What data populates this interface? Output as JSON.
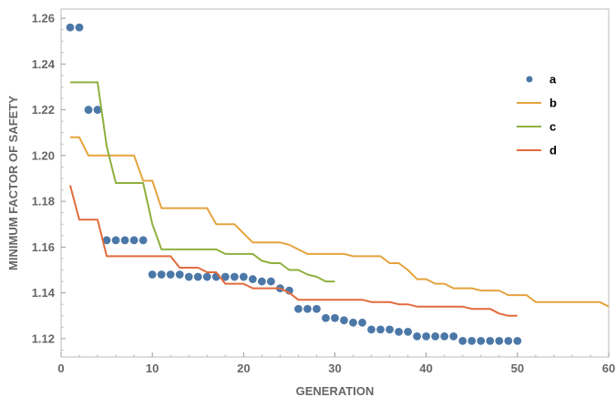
{
  "chart_data": {
    "type": "line",
    "xlabel": "GENERATION",
    "ylabel": "MINIMUM FACTOR OF SAFETY",
    "xlim": [
      0,
      60
    ],
    "ylim": [
      1.112,
      1.264
    ],
    "xticks": [
      0,
      10,
      20,
      30,
      40,
      50,
      60
    ],
    "yticks": [
      1.12,
      1.14,
      1.16,
      1.18,
      1.2,
      1.22,
      1.24,
      1.26
    ],
    "xtick_labels": [
      "0",
      "10",
      "20",
      "30",
      "40",
      "50",
      "60"
    ],
    "ytick_labels": [
      "1.12",
      "1.14",
      "1.16",
      "1.18",
      "1.20",
      "1.22",
      "1.24",
      "1.26"
    ],
    "grid": false,
    "legend_position": "top-right",
    "series": [
      {
        "name": "a",
        "style": "markers",
        "color": "#4c78a8",
        "x": [
          1,
          2,
          3,
          4,
          5,
          6,
          7,
          8,
          9,
          10,
          11,
          12,
          13,
          14,
          15,
          16,
          17,
          18,
          19,
          20,
          21,
          22,
          23,
          24,
          25,
          26,
          27,
          28,
          29,
          30,
          31,
          32,
          33,
          34,
          35,
          36,
          37,
          38,
          39,
          40,
          41,
          42,
          43,
          44,
          45,
          46,
          47,
          48,
          49,
          50
        ],
        "y": [
          1.256,
          1.256,
          1.22,
          1.22,
          1.163,
          1.163,
          1.163,
          1.163,
          1.163,
          1.148,
          1.148,
          1.148,
          1.148,
          1.147,
          1.147,
          1.147,
          1.147,
          1.147,
          1.147,
          1.147,
          1.146,
          1.145,
          1.145,
          1.142,
          1.141,
          1.133,
          1.133,
          1.133,
          1.129,
          1.129,
          1.128,
          1.127,
          1.127,
          1.124,
          1.124,
          1.124,
          1.123,
          1.123,
          1.121,
          1.121,
          1.121,
          1.121,
          1.121,
          1.119,
          1.119,
          1.119,
          1.119,
          1.119,
          1.119,
          1.119
        ]
      },
      {
        "name": "b",
        "style": "line",
        "color": "#e5a33d",
        "x": [
          1,
          2,
          3,
          4,
          5,
          6,
          7,
          8,
          9,
          10,
          11,
          12,
          13,
          14,
          15,
          16,
          17,
          18,
          19,
          20,
          21,
          22,
          23,
          24,
          25,
          26,
          27,
          28,
          29,
          30,
          31,
          32,
          33,
          34,
          35,
          36,
          37,
          38,
          39,
          40,
          41,
          42,
          43,
          44,
          45,
          46,
          47,
          48,
          49,
          50,
          51,
          52,
          53,
          54,
          55,
          56,
          57,
          58,
          59,
          60
        ],
        "y": [
          1.208,
          1.208,
          1.2,
          1.2,
          1.2,
          1.2,
          1.2,
          1.2,
          1.189,
          1.189,
          1.177,
          1.177,
          1.177,
          1.177,
          1.177,
          1.177,
          1.17,
          1.17,
          1.17,
          1.166,
          1.162,
          1.162,
          1.162,
          1.162,
          1.161,
          1.159,
          1.157,
          1.157,
          1.157,
          1.157,
          1.157,
          1.156,
          1.156,
          1.156,
          1.156,
          1.153,
          1.153,
          1.15,
          1.146,
          1.146,
          1.144,
          1.144,
          1.142,
          1.142,
          1.142,
          1.141,
          1.141,
          1.141,
          1.139,
          1.139,
          1.139,
          1.136,
          1.136,
          1.136,
          1.136,
          1.136,
          1.136,
          1.136,
          1.136,
          1.134
        ]
      },
      {
        "name": "c",
        "style": "line",
        "color": "#8fb03e",
        "x": [
          1,
          2,
          3,
          4,
          5,
          6,
          7,
          8,
          9,
          10,
          11,
          12,
          13,
          14,
          15,
          16,
          17,
          18,
          19,
          20,
          21,
          22,
          23,
          24,
          25,
          26,
          27,
          28,
          29,
          30
        ],
        "y": [
          1.232,
          1.232,
          1.232,
          1.232,
          1.204,
          1.188,
          1.188,
          1.188,
          1.188,
          1.17,
          1.159,
          1.159,
          1.159,
          1.159,
          1.159,
          1.159,
          1.159,
          1.157,
          1.157,
          1.157,
          1.157,
          1.154,
          1.153,
          1.153,
          1.15,
          1.15,
          1.148,
          1.147,
          1.145,
          1.145
        ]
      },
      {
        "name": "d",
        "style": "line",
        "color": "#e36b3d",
        "x": [
          1,
          2,
          3,
          4,
          5,
          6,
          7,
          8,
          9,
          10,
          11,
          12,
          13,
          14,
          15,
          16,
          17,
          18,
          19,
          20,
          21,
          22,
          23,
          24,
          25,
          26,
          27,
          28,
          29,
          30,
          31,
          32,
          33,
          34,
          35,
          36,
          37,
          38,
          39,
          40,
          41,
          42,
          43,
          44,
          45,
          46,
          47,
          48,
          49,
          50
        ],
        "y": [
          1.187,
          1.172,
          1.172,
          1.172,
          1.156,
          1.156,
          1.156,
          1.156,
          1.156,
          1.156,
          1.156,
          1.156,
          1.151,
          1.151,
          1.151,
          1.149,
          1.149,
          1.144,
          1.144,
          1.144,
          1.142,
          1.142,
          1.142,
          1.142,
          1.14,
          1.137,
          1.137,
          1.137,
          1.137,
          1.137,
          1.137,
          1.137,
          1.137,
          1.136,
          1.136,
          1.136,
          1.135,
          1.135,
          1.134,
          1.134,
          1.134,
          1.134,
          1.134,
          1.134,
          1.133,
          1.133,
          1.133,
          1.131,
          1.13,
          1.13
        ]
      }
    ]
  }
}
